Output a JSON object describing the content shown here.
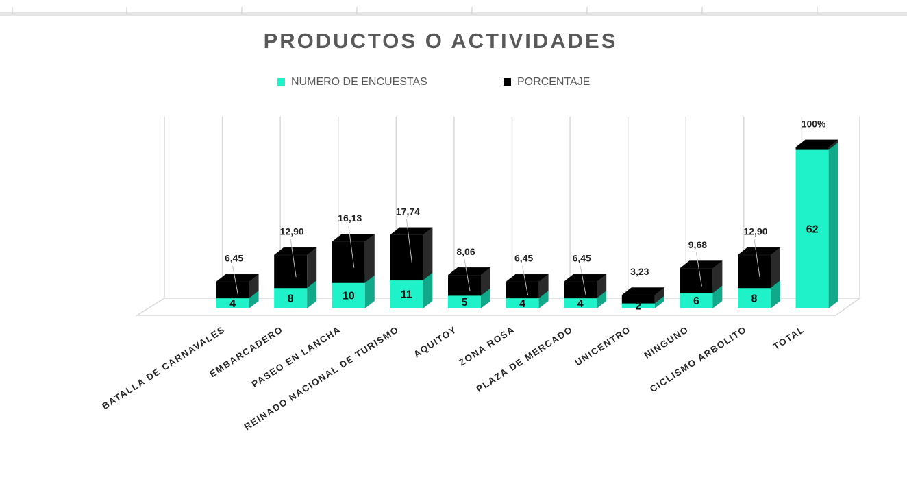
{
  "chart_data": {
    "type": "bar3d_stacked",
    "title": "PRODUCTOS O ACTIVIDADES",
    "categories": [
      "BATALLA DE CARNAVALES",
      "EMBARCADERO",
      "PASEO EN LANCHA",
      "REINADO NACIONAL DE TURISMO",
      "AQUITOY",
      "ZONA ROSA",
      "PLAZA DE MERCADO",
      "UNICENTRO",
      "NINGUNO",
      "CICLISMO ARBOLITO",
      "TOTAL"
    ],
    "series": [
      {
        "name": "NUMERO DE ENCUESTAS",
        "color": "#1ff2c8",
        "side_color": "#10a98a",
        "values": [
          4,
          8,
          10,
          11,
          5,
          4,
          4,
          2,
          6,
          8,
          62
        ]
      },
      {
        "name": "PORCENTAJE",
        "color": "#000000",
        "side_color": "#2a2a2a",
        "values": [
          6.45,
          12.9,
          16.13,
          17.74,
          8.06,
          6.45,
          6.45,
          3.23,
          9.68,
          12.9,
          1
        ],
        "value_labels": [
          "6,45",
          "12,90",
          "16,13",
          "17,74",
          "8,06",
          "6,45",
          "6,45",
          "3,23",
          "9,68",
          "12,90",
          "100%"
        ]
      }
    ],
    "ylim": [
      0,
      75
    ]
  }
}
